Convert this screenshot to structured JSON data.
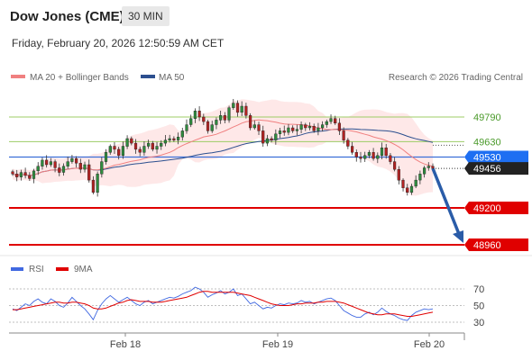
{
  "header": {
    "title": "Dow Jones (CME)",
    "timeframe": "30 MIN",
    "datetime": "Friday, February 20, 2026 12:50:59 AM CET"
  },
  "legend": {
    "ma20": {
      "label": "MA 20 + Bollinger Bands",
      "color": "#f08080"
    },
    "ma50": {
      "label": "MA 50",
      "color": "#2c4f8f"
    },
    "credit": "Research © 2026 Trading Central"
  },
  "rsi_legend": {
    "rsi": {
      "label": "RSI",
      "color": "#4169e1"
    },
    "ma9": {
      "label": "9MA",
      "color": "#e00000"
    }
  },
  "chart_data": [
    {
      "type": "line",
      "series_type": "candlestick",
      "x_labels": [
        "Feb 18",
        "Feb 19",
        "Feb 20"
      ],
      "current_price": "49456",
      "levels": [
        {
          "label": "49790",
          "value": 49790,
          "kind": "resistance"
        },
        {
          "label": "49630",
          "value": 49630,
          "kind": "resistance"
        },
        {
          "label": "49530",
          "value": 49530,
          "kind": "pivot"
        },
        {
          "label": "49200",
          "value": 49200,
          "kind": "support"
        },
        {
          "label": "48960",
          "value": 48960,
          "kind": "support"
        }
      ],
      "close_values": [
        49420,
        49400,
        49430,
        49410,
        49390,
        49440,
        49470,
        49510,
        49480,
        49500,
        49460,
        49430,
        49470,
        49500,
        49520,
        49490,
        49450,
        49480,
        49380,
        49300,
        49420,
        49500,
        49560,
        49600,
        49580,
        49540,
        49600,
        49650,
        49620,
        49580,
        49560,
        49600,
        49620,
        49580,
        49600,
        49620,
        49640,
        49650,
        49640,
        49660,
        49700,
        49740,
        49780,
        49830,
        49790,
        49760,
        49700,
        49740,
        49770,
        49800,
        49770,
        49850,
        49880,
        49820,
        49860,
        49800,
        49720,
        49740,
        49700,
        49620,
        49650,
        49640,
        49680,
        49700,
        49690,
        49720,
        49700,
        49710,
        49740,
        49720,
        49730,
        49700,
        49720,
        49740,
        49760,
        49780,
        49750,
        49700,
        49640,
        49600,
        49560,
        49530,
        49520,
        49540,
        49560,
        49520,
        49540,
        49590,
        49540,
        49500,
        49450,
        49380,
        49330,
        49300,
        49340,
        49380,
        49420,
        49460,
        49470,
        49456
      ],
      "ylim": [
        48900,
        49950
      ]
    },
    {
      "type": "line",
      "title": "RSI",
      "series": [
        {
          "name": "RSI",
          "values": [
            46,
            44,
            48,
            52,
            50,
            55,
            58,
            54,
            52,
            58,
            55,
            50,
            48,
            53,
            60,
            55,
            50,
            46,
            40,
            33,
            44,
            52,
            58,
            62,
            58,
            54,
            57,
            60,
            56,
            52,
            50,
            54,
            56,
            52,
            54,
            56,
            58,
            60,
            59,
            61,
            64,
            66,
            68,
            72,
            70,
            66,
            60,
            63,
            65,
            68,
            64,
            66,
            70,
            62,
            64,
            58,
            52,
            54,
            50,
            46,
            48,
            47,
            50,
            52,
            51,
            53,
            52,
            53,
            56,
            54,
            55,
            52,
            54,
            56,
            58,
            59,
            56,
            50,
            44,
            41,
            38,
            36,
            36,
            40,
            42,
            39,
            42,
            47,
            43,
            40,
            38,
            35,
            33,
            32,
            38,
            42,
            44,
            46,
            45,
            46
          ]
        },
        {
          "name": "9MA",
          "values": [
            45,
            45,
            46,
            47,
            48,
            49,
            50,
            51,
            52,
            53,
            54,
            54,
            53,
            53,
            54,
            54,
            53,
            52,
            50,
            47,
            46,
            46,
            47,
            49,
            51,
            53,
            54,
            56,
            57,
            56,
            55,
            55,
            55,
            54,
            54,
            54,
            55,
            56,
            57,
            58,
            59,
            60,
            62,
            64,
            66,
            67,
            67,
            66,
            66,
            66,
            66,
            66,
            66,
            65,
            64,
            63,
            62,
            60,
            58,
            56,
            54,
            52,
            51,
            50,
            50,
            50,
            51,
            52,
            52,
            53,
            53,
            53,
            54,
            54,
            55,
            55,
            55,
            54,
            53,
            51,
            49,
            47,
            45,
            43,
            41,
            40,
            39,
            39,
            40,
            40,
            40,
            39,
            38,
            37,
            37,
            38,
            39,
            40,
            41,
            42
          ]
        }
      ],
      "levels": [
        {
          "label": "70",
          "value": 70
        },
        {
          "label": "50",
          "value": 50
        },
        {
          "label": "30",
          "value": 30
        }
      ],
      "ylim": [
        20,
        80
      ]
    }
  ]
}
